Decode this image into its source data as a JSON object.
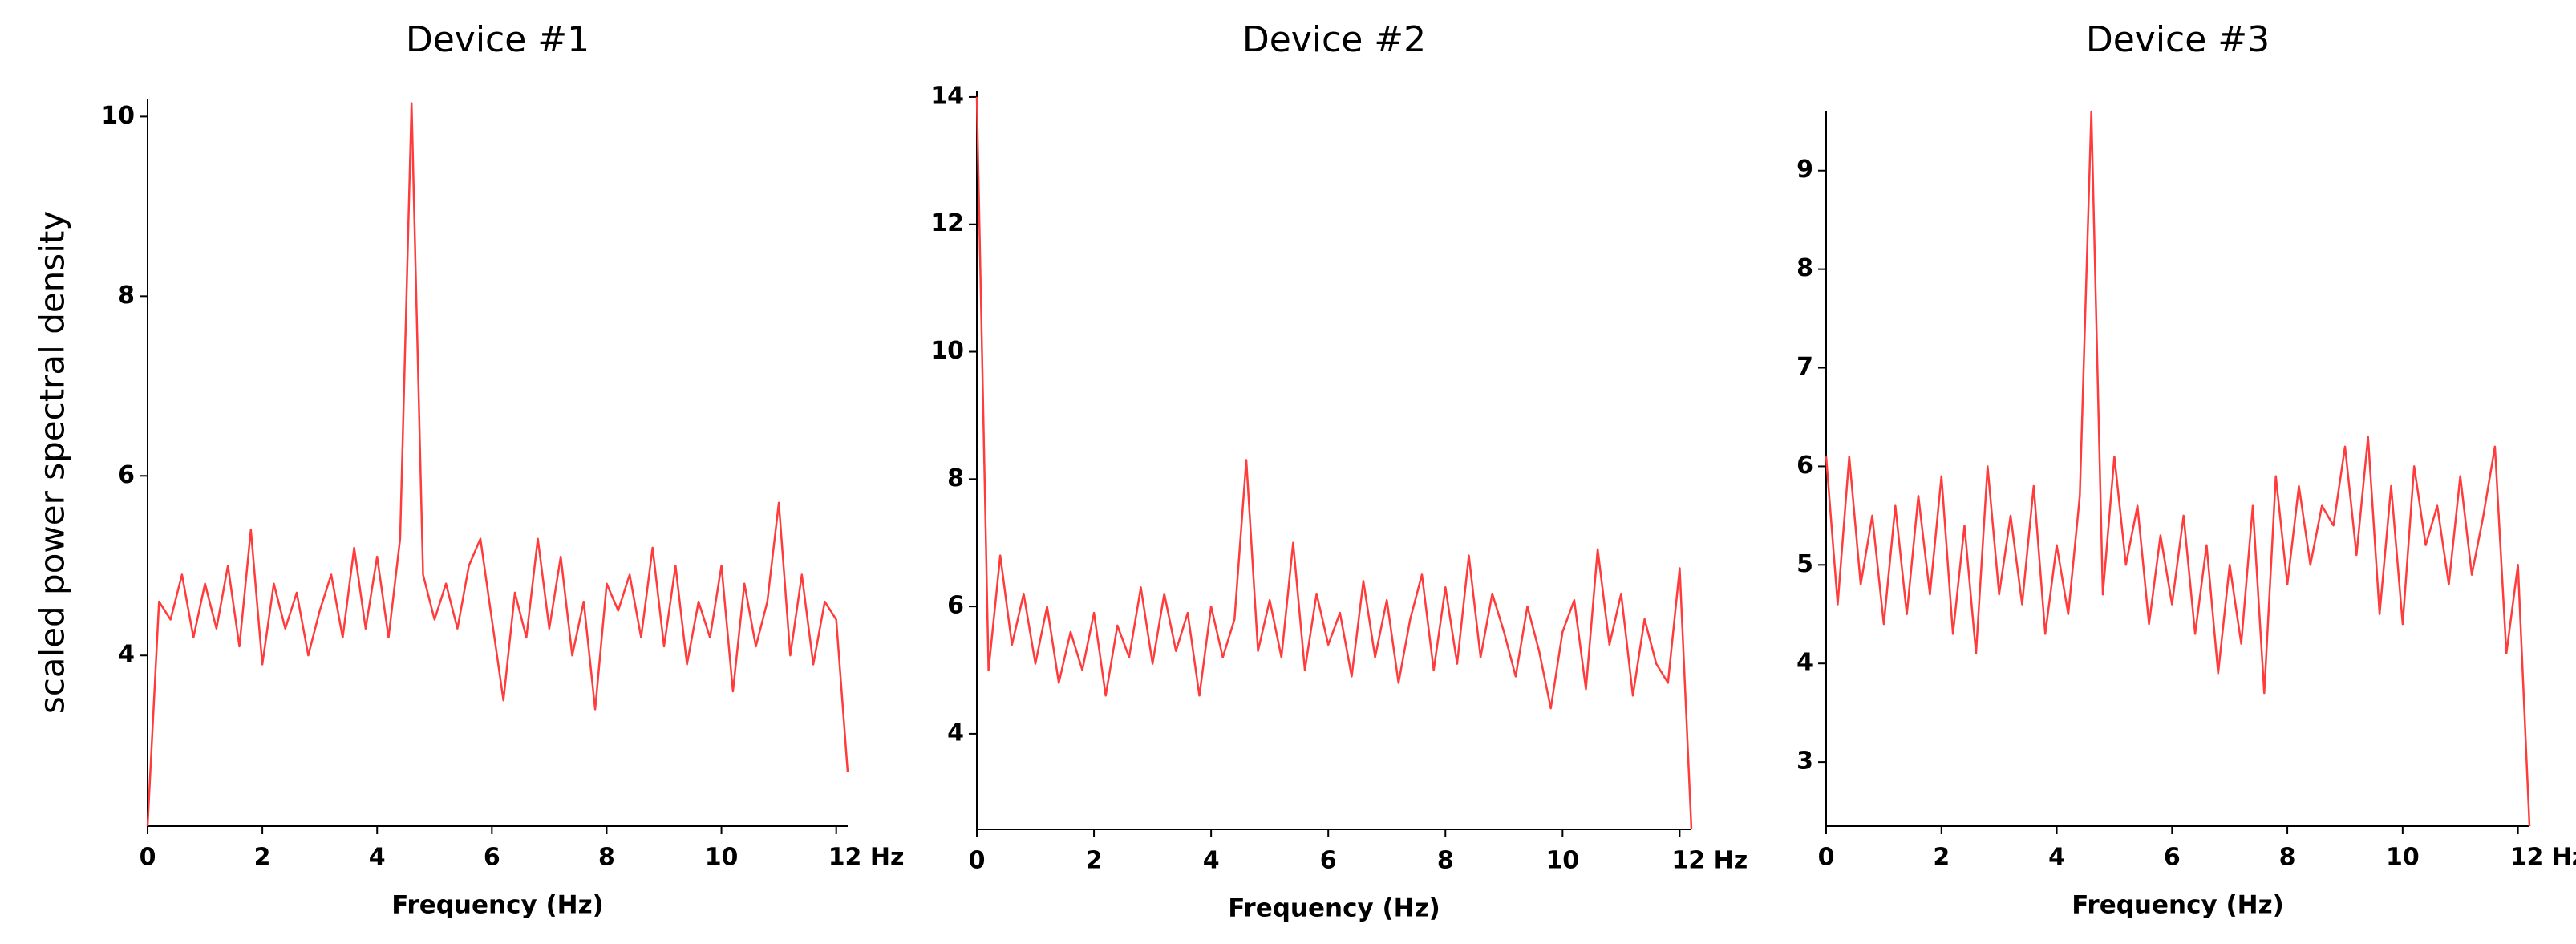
{
  "chart_data": [
    {
      "type": "line",
      "title": "Device #1",
      "xlabel": "Frequency (Hz)",
      "ylabel": "scaled power spectral density",
      "color": "#ff3b3b",
      "x": [
        0,
        0.2,
        0.4,
        0.6,
        0.8,
        1,
        1.2,
        1.4,
        1.6,
        1.8,
        2,
        2.2,
        2.4,
        2.6,
        2.8,
        3,
        3.2,
        3.4,
        3.6,
        3.8,
        4,
        4.2,
        4.4,
        4.6,
        4.8,
        5,
        5.2,
        5.4,
        5.6,
        5.8,
        6,
        6.2,
        6.4,
        6.6,
        6.8,
        7,
        7.2,
        7.4,
        7.6,
        7.8,
        8,
        8.2,
        8.4,
        8.6,
        8.8,
        9,
        9.2,
        9.4,
        9.6,
        9.8,
        10,
        10.2,
        10.4,
        10.6,
        10.8,
        11,
        11.2,
        11.4,
        11.6,
        11.8,
        12,
        12.2
      ],
      "values": [
        2.1,
        4.6,
        4.4,
        4.9,
        4.2,
        4.8,
        4.3,
        5.0,
        4.1,
        5.4,
        3.9,
        4.8,
        4.3,
        4.7,
        4.0,
        4.5,
        4.9,
        4.2,
        5.2,
        4.3,
        5.1,
        4.2,
        5.3,
        10.15,
        4.9,
        4.4,
        4.8,
        4.3,
        5.0,
        5.3,
        4.4,
        3.5,
        4.7,
        4.2,
        5.3,
        4.3,
        5.1,
        4.0,
        4.6,
        3.4,
        4.8,
        4.5,
        4.9,
        4.2,
        5.2,
        4.1,
        5.0,
        3.9,
        4.6,
        4.2,
        5.0,
        3.6,
        4.8,
        4.1,
        4.6,
        5.7,
        4.0,
        4.9,
        3.9,
        4.6,
        4.4,
        2.7
      ],
      "xlim": [
        0,
        12.2
      ],
      "ylim": [
        2.1,
        10.2
      ],
      "xticks": [
        0,
        2,
        4,
        6,
        8,
        10,
        {
          "value": 12,
          "label": "12 Hz"
        }
      ],
      "yticks": [
        4,
        6,
        8,
        10
      ]
    },
    {
      "type": "line",
      "title": "Device #2",
      "xlabel": "Frequency (Hz)",
      "color": "#ff3b3b",
      "x": [
        0,
        0.2,
        0.4,
        0.6,
        0.8,
        1,
        1.2,
        1.4,
        1.6,
        1.8,
        2,
        2.2,
        2.4,
        2.6,
        2.8,
        3,
        3.2,
        3.4,
        3.6,
        3.8,
        4,
        4.2,
        4.4,
        4.6,
        4.8,
        5,
        5.2,
        5.4,
        5.6,
        5.8,
        6,
        6.2,
        6.4,
        6.6,
        6.8,
        7,
        7.2,
        7.4,
        7.6,
        7.8,
        8,
        8.2,
        8.4,
        8.6,
        8.8,
        9,
        9.2,
        9.4,
        9.6,
        9.8,
        10,
        10.2,
        10.4,
        10.6,
        10.8,
        11,
        11.2,
        11.4,
        11.6,
        11.8,
        12,
        12.2
      ],
      "values": [
        14.0,
        5.0,
        6.8,
        5.4,
        6.2,
        5.1,
        6.0,
        4.8,
        5.6,
        5.0,
        5.9,
        4.6,
        5.7,
        5.2,
        6.3,
        5.1,
        6.2,
        5.3,
        5.9,
        4.6,
        6.0,
        5.2,
        5.8,
        8.3,
        5.3,
        6.1,
        5.2,
        7.0,
        5.0,
        6.2,
        5.4,
        5.9,
        4.9,
        6.4,
        5.2,
        6.1,
        4.8,
        5.8,
        6.5,
        5.0,
        6.3,
        5.1,
        6.8,
        5.2,
        6.2,
        5.6,
        4.9,
        6.0,
        5.3,
        4.4,
        5.6,
        6.1,
        4.7,
        6.9,
        5.4,
        6.2,
        4.6,
        5.8,
        5.1,
        4.8,
        6.6,
        2.5
      ],
      "xlim": [
        0,
        12.2
      ],
      "ylim": [
        2.5,
        14.1
      ],
      "xticks": [
        0,
        2,
        4,
        6,
        8,
        10,
        {
          "value": 12,
          "label": "12 Hz"
        }
      ],
      "yticks": [
        4,
        6,
        8,
        10,
        12,
        14
      ]
    },
    {
      "type": "line",
      "title": "Device #3",
      "xlabel": "Frequency (Hz)",
      "color": "#ff3b3b",
      "x": [
        0,
        0.2,
        0.4,
        0.6,
        0.8,
        1,
        1.2,
        1.4,
        1.6,
        1.8,
        2,
        2.2,
        2.4,
        2.6,
        2.8,
        3,
        3.2,
        3.4,
        3.6,
        3.8,
        4,
        4.2,
        4.4,
        4.6,
        4.8,
        5,
        5.2,
        5.4,
        5.6,
        5.8,
        6,
        6.2,
        6.4,
        6.6,
        6.8,
        7,
        7.2,
        7.4,
        7.6,
        7.8,
        8,
        8.2,
        8.4,
        8.6,
        8.8,
        9,
        9.2,
        9.4,
        9.6,
        9.8,
        10,
        10.2,
        10.4,
        10.6,
        10.8,
        11,
        11.2,
        11.4,
        11.6,
        11.8,
        12,
        12.2
      ],
      "values": [
        6.1,
        4.6,
        6.1,
        4.8,
        5.5,
        4.4,
        5.6,
        4.5,
        5.7,
        4.7,
        5.9,
        4.3,
        5.4,
        4.1,
        6.0,
        4.7,
        5.5,
        4.6,
        5.8,
        4.3,
        5.2,
        4.5,
        5.7,
        9.6,
        4.7,
        6.1,
        5.0,
        5.6,
        4.4,
        5.3,
        4.6,
        5.5,
        4.3,
        5.2,
        3.9,
        5.0,
        4.2,
        5.6,
        3.7,
        5.9,
        4.8,
        5.8,
        5.0,
        5.6,
        5.4,
        6.2,
        5.1,
        6.3,
        4.5,
        5.8,
        4.4,
        6.0,
        5.2,
        5.6,
        4.8,
        5.9,
        4.9,
        5.5,
        6.2,
        4.1,
        5.0,
        2.35
      ],
      "xlim": [
        0,
        12.2
      ],
      "ylim": [
        2.35,
        9.6
      ],
      "xticks": [
        0,
        2,
        4,
        6,
        8,
        10,
        {
          "value": 12,
          "label": "12 Hz"
        }
      ],
      "yticks": [
        3,
        4,
        5,
        6,
        7,
        8,
        9
      ]
    }
  ]
}
